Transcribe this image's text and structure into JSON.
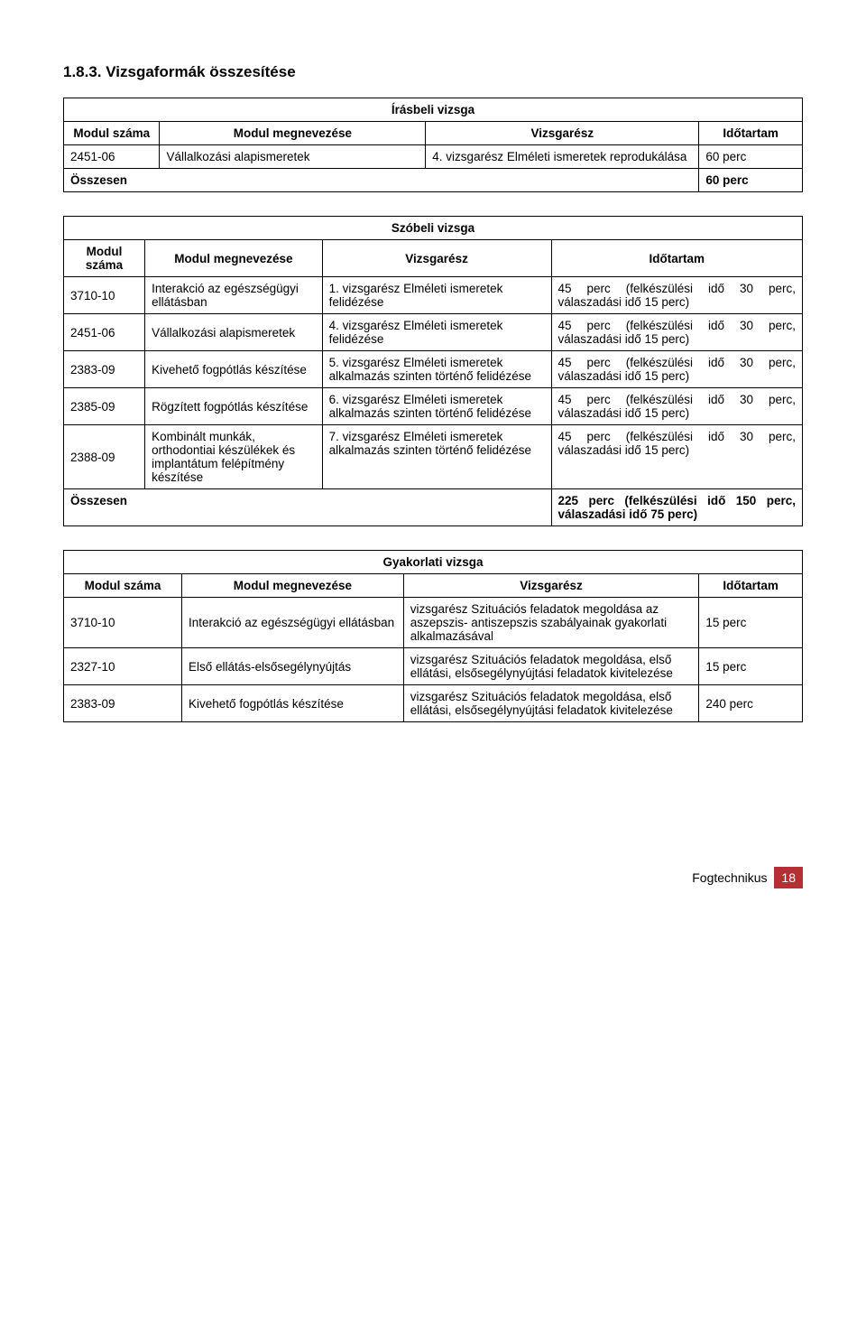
{
  "heading": "1.8.3. Vizsgaformák összesítése",
  "col_modul_szama": "Modul száma",
  "col_modul_megnev": "Modul megnevezése",
  "col_vizsgaresz": "Vizsgarész",
  "col_idotartam": "Időtartam",
  "osszesen": "Összesen",
  "table1": {
    "title": "Írásbeli vizsga",
    "row": {
      "modul": "2451-06",
      "name": "Vállalkozási alapismeretek",
      "part": "4. vizsgarész\nElméleti ismeretek reprodukálása",
      "dur": "60 perc"
    },
    "total": "60 perc"
  },
  "table2": {
    "title": "Szóbeli vizsga",
    "rows": [
      {
        "modul": "3710-10",
        "name": "Interakció az egészségügyi ellátásban",
        "part": "1. vizsgarész\nElméleti ismeretek felidézése",
        "dur": "45 perc (felkészülési idő 30 perc, válaszadási idő 15 perc)"
      },
      {
        "modul": "2451-06",
        "name": "Vállalkozási alapismeretek",
        "part": "4. vizsgarész\nElméleti ismeretek felidézése",
        "dur": "45 perc (felkészülési idő 30 perc, válaszadási idő 15 perc)"
      },
      {
        "modul": "2383-09",
        "name": "Kivehető fogpótlás készítése",
        "part": "5. vizsgarész\nElméleti ismeretek alkalmazás szinten történő felidézése",
        "dur": "45 perc (felkészülési idő 30 perc, válaszadási idő 15 perc)"
      },
      {
        "modul": "2385-09",
        "name": "Rögzített fogpótlás készítése",
        "part": "6. vizsgarész\nElméleti ismeretek alkalmazás szinten történő felidézése",
        "dur": "45 perc (felkészülési idő 30 perc, válaszadási idő 15 perc)"
      },
      {
        "modul": "2388-09",
        "name": "Kombinált munkák, orthodontiai készülékek és implantátum felépítmény készítése",
        "part": "7. vizsgarész\nElméleti ismeretek alkalmazás szinten történő felidézése",
        "dur": "45 perc (felkészülési idő 30 perc, válaszadási idő 15 perc)"
      }
    ],
    "total": "225 perc (felkészülési idő 150 perc, válaszadási idő 75 perc)"
  },
  "table3": {
    "title": "Gyakorlati vizsga",
    "col_modul_szama": "Modul száma",
    "rows": [
      {
        "modul": "3710-10",
        "name": "Interakció az egészségügyi ellátásban",
        "part": "vizsgarész\nSzituációs feladatok megoldása az aszepszis- antiszepszis szabályainak gyakorlati alkalmazásával",
        "dur": "15 perc"
      },
      {
        "modul": "2327-10",
        "name": "Első ellátás-elsősegélynyújtás",
        "part": "vizsgarész\nSzituációs feladatok megoldása, első ellátási, elsősegélynyújtási feladatok kivitelezése",
        "dur": "15 perc"
      },
      {
        "modul": "2383-09",
        "name": "Kivehető fogpótlás készítése",
        "part": "vizsgarész\nSzituációs feladatok megoldása, első ellátási, elsősegélynyújtási feladatok kivitelezése",
        "dur": "240 perc"
      }
    ]
  },
  "footer_text": "Fogtechnikus",
  "page_number": "18"
}
